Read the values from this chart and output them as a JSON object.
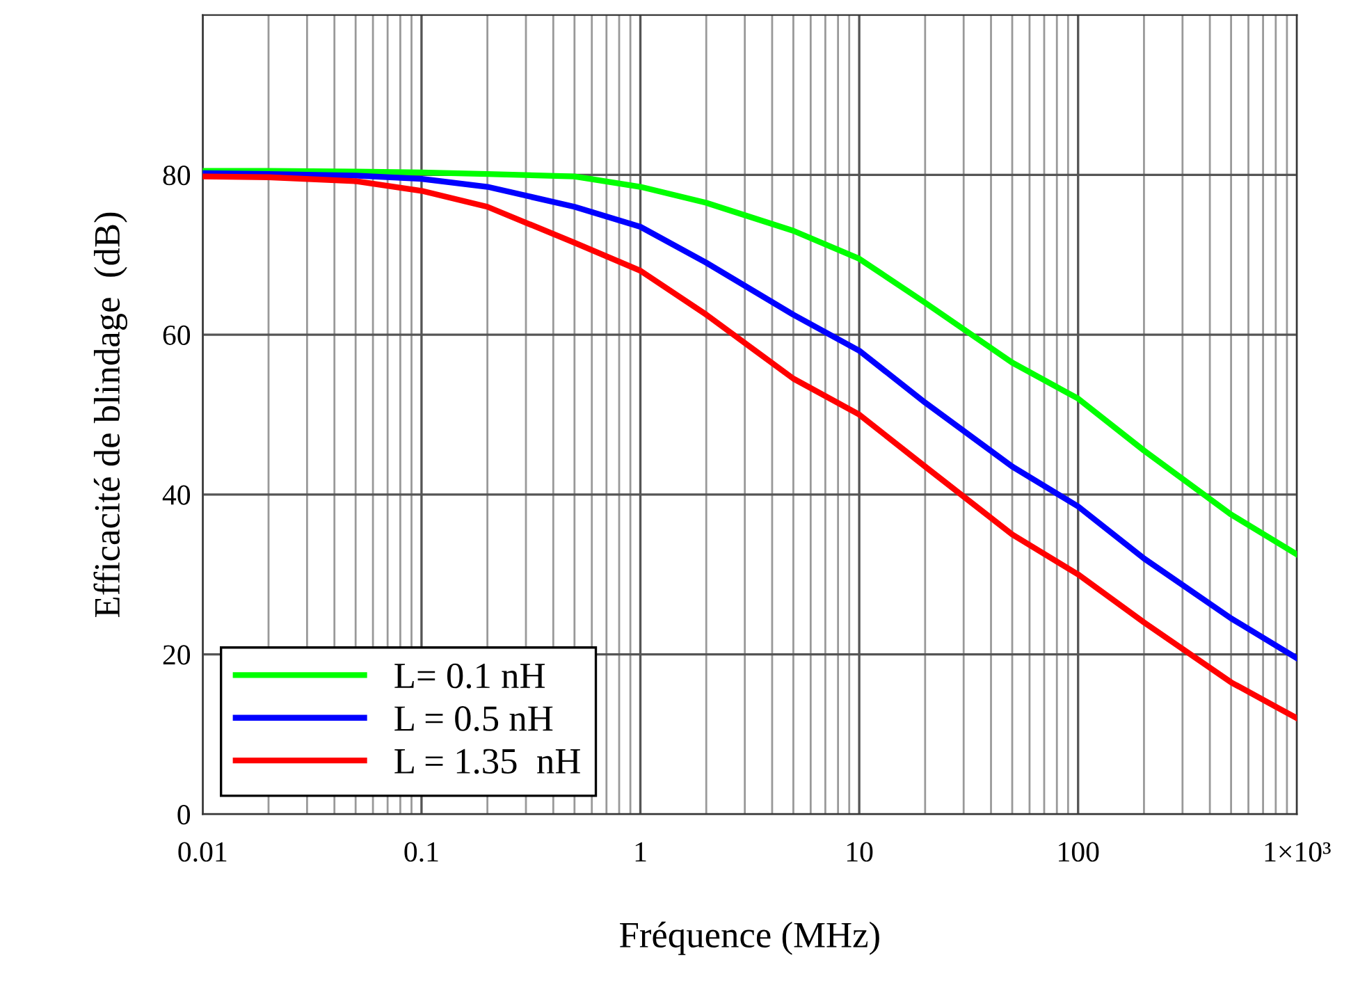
{
  "chart_data": {
    "type": "line",
    "xlabel": "Fréquence (MHz)",
    "ylabel": "Efficacité de blindage  (dB)",
    "x": [
      0.01,
      0.02,
      0.05,
      0.1,
      0.2,
      0.5,
      1,
      2,
      5,
      10,
      20,
      50,
      100,
      200,
      500,
      1000
    ],
    "series": [
      {
        "name": "L= 0.1 nH",
        "color": "#00ff00",
        "values": [
          80.5,
          80.5,
          80.4,
          80.3,
          80.1,
          79.8,
          78.5,
          76.5,
          73,
          69.5,
          64,
          56.5,
          52,
          45.5,
          37.5,
          32.5
        ]
      },
      {
        "name": "L = 0.5 nH",
        "color": "#0000ff",
        "values": [
          80.2,
          80.1,
          79.9,
          79.5,
          78.5,
          76,
          73.5,
          69,
          62.5,
          58,
          51.5,
          43.5,
          38.5,
          32,
          24.5,
          19.5
        ]
      },
      {
        "name": "L = 1.35  nH",
        "color": "#ff0000",
        "values": [
          79.8,
          79.7,
          79.2,
          78,
          76,
          71.5,
          68,
          62.5,
          54.5,
          50,
          43.5,
          35,
          30,
          24,
          16.5,
          12
        ]
      }
    ],
    "log": "x",
    "xlim": [
      0.01,
      1000
    ],
    "ylim": [
      0,
      100
    ],
    "xticks": [
      0.01,
      0.1,
      1,
      10,
      100,
      {
        "value": 1000,
        "label": "1×10³"
      }
    ],
    "yticks": [
      0,
      20,
      40,
      60,
      80
    ],
    "grid": true,
    "legend": "bottom left",
    "line_style": "solid",
    "marker": "none"
  }
}
